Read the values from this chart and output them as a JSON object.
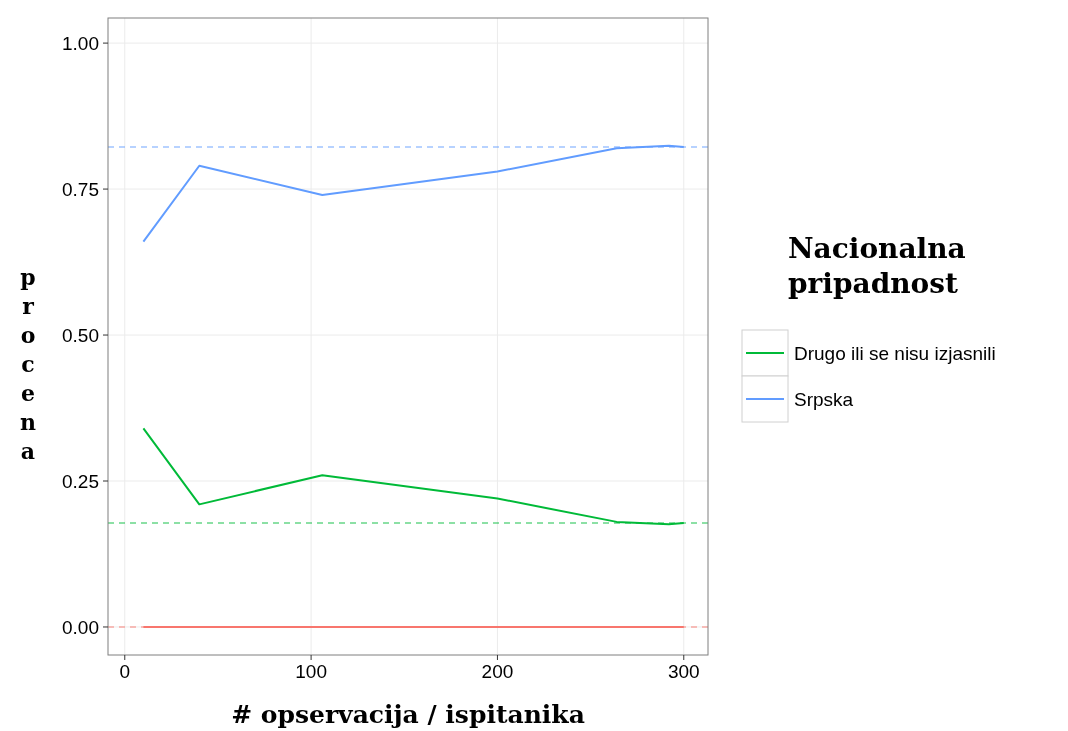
{
  "chart_data": {
    "type": "line",
    "xlabel": "# opservacija / ispitanika",
    "ylabel": "procena",
    "legend_title": "Nacionalna pripadnost",
    "x": [
      10,
      40,
      106,
      200,
      264,
      292,
      300
    ],
    "series": [
      {
        "color": "#f8766d",
        "values": [
          0,
          0,
          0,
          0,
          0,
          0,
          0
        ]
      },
      {
        "name": "Drugo ili se nisu izjasnili",
        "color": "#00ba38",
        "values": [
          0.34,
          0.21,
          0.26,
          0.22,
          0.18,
          0.176,
          0.178
        ]
      },
      {
        "name": "Srpska",
        "color": "#619cff",
        "values": [
          0.66,
          0.79,
          0.74,
          0.78,
          0.82,
          0.824,
          0.822
        ]
      }
    ],
    "ref_lines": [
      {
        "axis": "y",
        "value": 0.822,
        "color": "#619cff",
        "line_style": "dashed"
      },
      {
        "axis": "y",
        "value": 0.178,
        "color": "#00ba38",
        "line_style": "dashed"
      },
      {
        "axis": "y",
        "value": 0,
        "color": "#f8766d",
        "line_style": "dashed"
      }
    ],
    "xlim": [
      -9,
      313
    ],
    "ylim": [
      -0.048,
      1.043
    ],
    "xticks": [
      0,
      100,
      200,
      300
    ],
    "yticks": [
      {
        "value": 0,
        "label": "0.00"
      },
      {
        "value": 0.25,
        "label": "0.25"
      },
      {
        "value": 0.5,
        "label": "0.50"
      },
      {
        "value": 0.75,
        "label": "0.75"
      },
      {
        "value": 1,
        "label": "1.00"
      }
    ],
    "grid": true,
    "legend": "right",
    "line_style": "solid",
    "marker": "none"
  }
}
